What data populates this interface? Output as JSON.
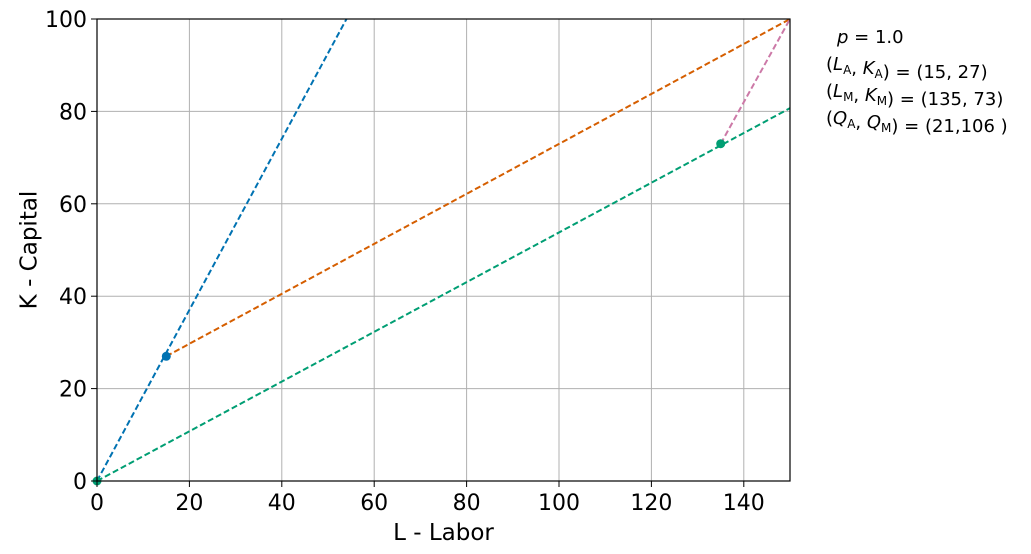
{
  "chart_data": {
    "type": "line",
    "title": "",
    "xlabel": "L - Labor",
    "ylabel": "K - Capital",
    "xlim": [
      0,
      150
    ],
    "ylim": [
      0,
      100
    ],
    "xticks": [
      0,
      20,
      40,
      60,
      80,
      100,
      120,
      140
    ],
    "yticks": [
      0,
      20,
      40,
      60,
      80,
      100
    ],
    "grid": true,
    "legend": "none",
    "series": [
      {
        "color": "#0072B2",
        "style": "dashed",
        "x": [
          0,
          54
        ],
        "y": [
          0,
          100
        ]
      },
      {
        "color": "#D55E00",
        "style": "dashed",
        "x": [
          15,
          150
        ],
        "y": [
          27,
          100
        ]
      },
      {
        "color": "#009E73",
        "style": "dashed",
        "x": [
          0,
          150
        ],
        "y": [
          0,
          80.7
        ]
      },
      {
        "color": "#CC79A7",
        "style": "dashed",
        "x": [
          135,
          150
        ],
        "y": [
          73,
          100
        ]
      }
    ],
    "points": [
      {
        "x": 15,
        "y": 27,
        "color": "#0072B2"
      },
      {
        "x": 135,
        "y": 73,
        "color": "#009E73"
      },
      {
        "x": 0,
        "y": 0,
        "color": "#009E73"
      }
    ],
    "annotations": [
      {
        "id": "price",
        "parts": [
          {
            "t": "p",
            "italic": true
          },
          {
            "t": " = 1.0"
          }
        ]
      },
      {
        "id": "agri",
        "parts": [
          {
            "t": "("
          },
          {
            "t": "L",
            "italic": true
          },
          {
            "t": "A",
            "sub": true
          },
          {
            "t": ", "
          },
          {
            "t": "K",
            "italic": true
          },
          {
            "t": "A",
            "sub": true
          },
          {
            "t": ") = (15, 27)"
          }
        ]
      },
      {
        "id": "manu",
        "parts": [
          {
            "t": "("
          },
          {
            "t": "L",
            "italic": true
          },
          {
            "t": "M",
            "sub": true
          },
          {
            "t": ", "
          },
          {
            "t": "K",
            "italic": true
          },
          {
            "t": "M",
            "sub": true
          },
          {
            "t": ") = (135, 73)"
          }
        ]
      },
      {
        "id": "output",
        "parts": [
          {
            "t": "("
          },
          {
            "t": "Q",
            "italic": true
          },
          {
            "t": "A",
            "sub": true
          },
          {
            "t": ", "
          },
          {
            "t": "Q",
            "italic": true
          },
          {
            "t": "M",
            "sub": true
          },
          {
            "t": ") = (21,106 )"
          }
        ]
      }
    ]
  }
}
